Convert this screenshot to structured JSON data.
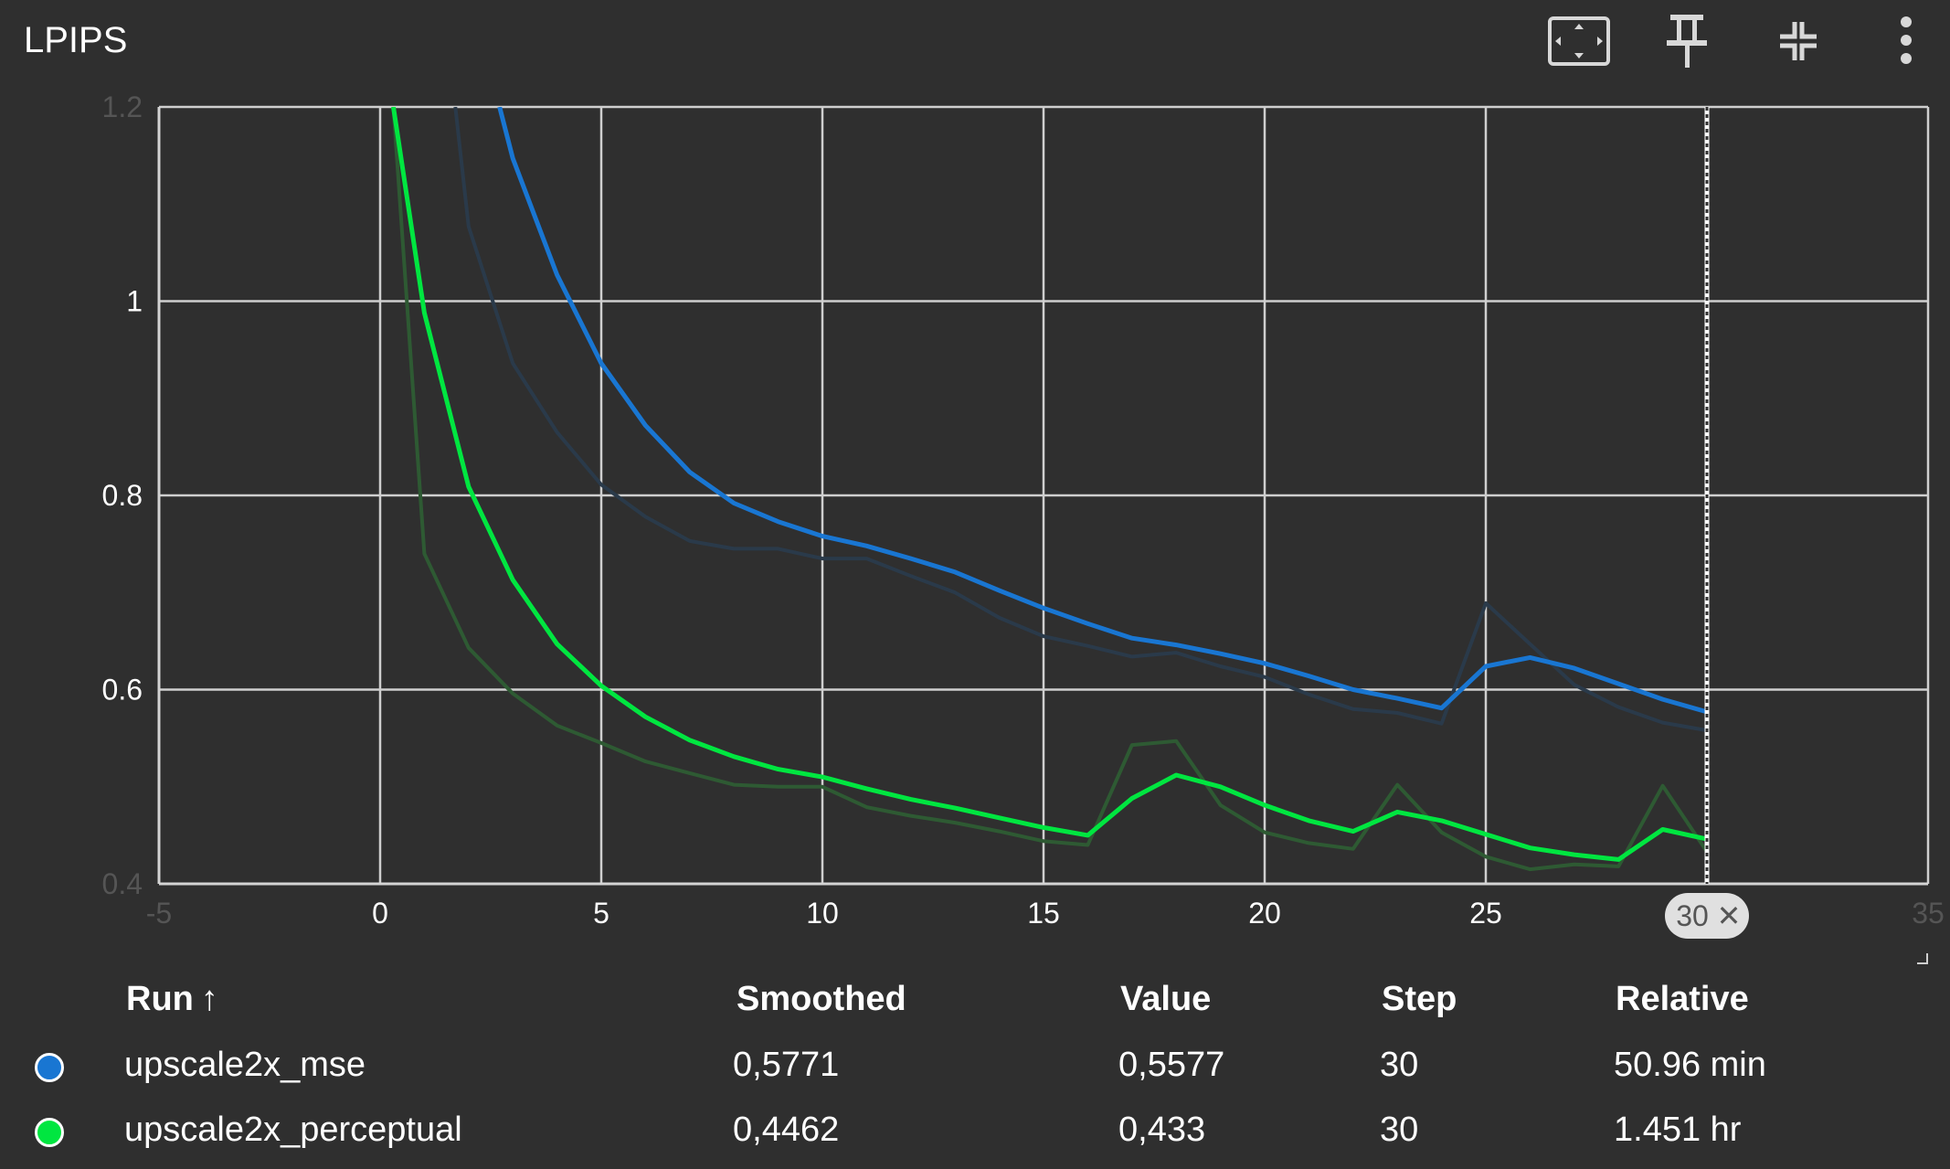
{
  "card": {
    "title": "LPIPS",
    "toolbar": {
      "fit_icon": "fit-to-domain-icon",
      "pin_icon": "pin-icon",
      "collapse_icon": "collapse-icon",
      "menu_icon": "more-vert-icon"
    }
  },
  "chart_data": {
    "type": "line",
    "title": "LPIPS",
    "xlim": [
      -5,
      35
    ],
    "ylim": [
      0.4,
      1.2
    ],
    "x_ticks": [
      "-5",
      "0",
      "5",
      "10",
      "15",
      "20",
      "25",
      "30",
      "35"
    ],
    "y_ticks": [
      "0.4",
      "0.6",
      "0.8",
      "1",
      "1.2"
    ],
    "grid": true,
    "cursor_step": 30,
    "cursor_label": "30",
    "series": [
      {
        "name": "upscale2x_mse",
        "color": "#1976d2",
        "raw_color": "#2a3a4a",
        "smoothed": [
          [
            2.7,
            1.2
          ],
          [
            3,
            1.147
          ],
          [
            4,
            1.027
          ],
          [
            5,
            0.936
          ],
          [
            6,
            0.872
          ],
          [
            7,
            0.824
          ],
          [
            8,
            0.792
          ],
          [
            9,
            0.773
          ],
          [
            10,
            0.758
          ],
          [
            11,
            0.748
          ],
          [
            12,
            0.735
          ],
          [
            13,
            0.721
          ],
          [
            14,
            0.702
          ],
          [
            15,
            0.684
          ],
          [
            16,
            0.668
          ],
          [
            17,
            0.653
          ],
          [
            18,
            0.646
          ],
          [
            19,
            0.637
          ],
          [
            20,
            0.627
          ],
          [
            21,
            0.614
          ],
          [
            22,
            0.6
          ],
          [
            23,
            0.591
          ],
          [
            24,
            0.581
          ],
          [
            25,
            0.624
          ],
          [
            26,
            0.633
          ],
          [
            27,
            0.622
          ],
          [
            28,
            0.606
          ],
          [
            29,
            0.59
          ],
          [
            30,
            0.577
          ]
        ],
        "raw": [
          [
            1.7,
            1.2
          ],
          [
            2,
            1.077
          ],
          [
            3,
            0.936
          ],
          [
            4,
            0.865
          ],
          [
            5,
            0.811
          ],
          [
            6,
            0.778
          ],
          [
            7,
            0.753
          ],
          [
            8,
            0.745
          ],
          [
            9,
            0.745
          ],
          [
            10,
            0.735
          ],
          [
            11,
            0.735
          ],
          [
            12,
            0.717
          ],
          [
            13,
            0.7
          ],
          [
            14,
            0.674
          ],
          [
            15,
            0.655
          ],
          [
            16,
            0.645
          ],
          [
            17,
            0.634
          ],
          [
            18,
            0.638
          ],
          [
            19,
            0.624
          ],
          [
            20,
            0.613
          ],
          [
            21,
            0.595
          ],
          [
            22,
            0.58
          ],
          [
            23,
            0.576
          ],
          [
            24,
            0.565
          ],
          [
            25,
            0.689
          ],
          [
            26,
            0.647
          ],
          [
            27,
            0.605
          ],
          [
            28,
            0.582
          ],
          [
            29,
            0.566
          ],
          [
            30,
            0.558
          ]
        ]
      },
      {
        "name": "upscale2x_perceptual",
        "color": "#00e640",
        "raw_color": "#2e5a33",
        "smoothed": [
          [
            0.3,
            1.2
          ],
          [
            1,
            0.988
          ],
          [
            2,
            0.809
          ],
          [
            3,
            0.713
          ],
          [
            4,
            0.647
          ],
          [
            5,
            0.604
          ],
          [
            6,
            0.572
          ],
          [
            7,
            0.548
          ],
          [
            8,
            0.531
          ],
          [
            9,
            0.518
          ],
          [
            10,
            0.51
          ],
          [
            11,
            0.498
          ],
          [
            12,
            0.487
          ],
          [
            13,
            0.478
          ],
          [
            14,
            0.468
          ],
          [
            15,
            0.458
          ],
          [
            16,
            0.45
          ],
          [
            17,
            0.488
          ],
          [
            18,
            0.512
          ],
          [
            19,
            0.5
          ],
          [
            20,
            0.481
          ],
          [
            21,
            0.465
          ],
          [
            22,
            0.454
          ],
          [
            23,
            0.474
          ],
          [
            24,
            0.465
          ],
          [
            25,
            0.451
          ],
          [
            26,
            0.437
          ],
          [
            27,
            0.43
          ],
          [
            28,
            0.425
          ],
          [
            29,
            0.456
          ],
          [
            30,
            0.446
          ]
        ],
        "raw": [
          [
            0.3,
            1.2
          ],
          [
            1,
            0.74
          ],
          [
            2,
            0.643
          ],
          [
            3,
            0.596
          ],
          [
            4,
            0.563
          ],
          [
            5,
            0.545
          ],
          [
            6,
            0.526
          ],
          [
            7,
            0.514
          ],
          [
            8,
            0.502
          ],
          [
            9,
            0.5
          ],
          [
            10,
            0.5
          ],
          [
            11,
            0.479
          ],
          [
            12,
            0.47
          ],
          [
            13,
            0.463
          ],
          [
            14,
            0.454
          ],
          [
            15,
            0.444
          ],
          [
            16,
            0.44
          ],
          [
            17,
            0.543
          ],
          [
            18,
            0.547
          ],
          [
            19,
            0.481
          ],
          [
            20,
            0.453
          ],
          [
            21,
            0.442
          ],
          [
            22,
            0.436
          ],
          [
            23,
            0.502
          ],
          [
            24,
            0.453
          ],
          [
            25,
            0.428
          ],
          [
            26,
            0.415
          ],
          [
            27,
            0.42
          ],
          [
            28,
            0.418
          ],
          [
            29,
            0.501
          ],
          [
            30,
            0.433
          ]
        ]
      }
    ]
  },
  "legend": {
    "headers": {
      "run": "Run",
      "sort_arrow": "↑",
      "smoothed": "Smoothed",
      "value": "Value",
      "step": "Step",
      "relative": "Relative"
    },
    "rows": [
      {
        "color": "#1976d2",
        "run": "upscale2x_mse",
        "smoothed": "0,5771",
        "value": "0,5577",
        "step": "30",
        "relative": "50.96 min"
      },
      {
        "color": "#00e640",
        "run": "upscale2x_perceptual",
        "smoothed": "0,4462",
        "value": "0,433",
        "step": "30",
        "relative": "1.451 hr"
      }
    ]
  }
}
